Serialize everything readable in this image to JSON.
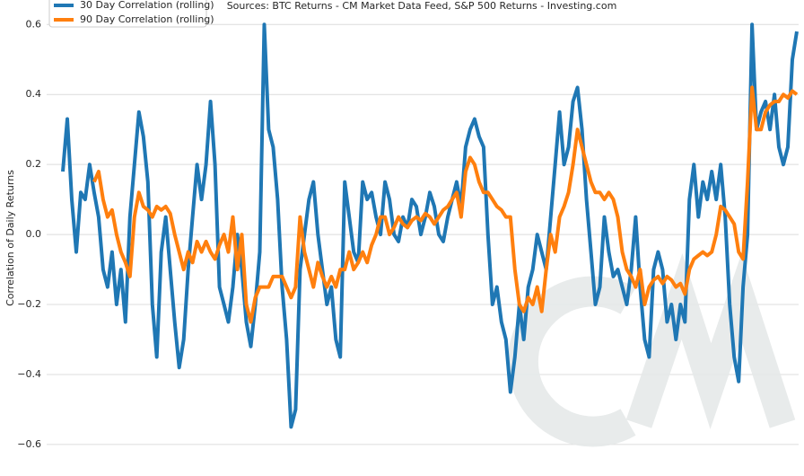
{
  "chart_data": {
    "type": "line",
    "subtitle": "Sources: BTC Returns - CM Market Data Feed,  S&P 500 Returns - Investing.com",
    "y_label": "Correlation of Daily Returns",
    "ylim": [
      -0.69,
      0.67
    ],
    "yticks": [
      {
        "value": 0.6,
        "label": "0.6"
      },
      {
        "value": 0.4,
        "label": "0.4"
      },
      {
        "value": 0.2,
        "label": "0.2"
      },
      {
        "value": 0,
        "label": "0.0"
      },
      {
        "value": -0.2,
        "label": "−0.2"
      },
      {
        "value": -0.4,
        "label": "−0.4"
      },
      {
        "value": -0.6,
        "label": "−0.6"
      }
    ],
    "grid": true,
    "legend": "upper left",
    "series": [
      {
        "name": "30 Day Correlation (rolling)",
        "color": "#1f77b4",
        "values": [
          0.18,
          0.33,
          0.1,
          -0.05,
          0.12,
          0.1,
          0.2,
          0.12,
          0.05,
          -0.1,
          -0.15,
          -0.05,
          -0.2,
          -0.1,
          -0.25,
          0.05,
          0.2,
          0.35,
          0.28,
          0.15,
          -0.2,
          -0.35,
          -0.05,
          0.05,
          -0.1,
          -0.25,
          -0.38,
          -0.3,
          -0.1,
          0.05,
          0.2,
          0.1,
          0.2,
          0.38,
          0.2,
          -0.15,
          -0.2,
          -0.25,
          -0.15,
          0.0,
          -0.1,
          -0.25,
          -0.32,
          -0.2,
          -0.05,
          0.6,
          0.3,
          0.25,
          0.1,
          -0.15,
          -0.3,
          -0.55,
          -0.5,
          -0.1,
          0.0,
          0.1,
          0.15,
          0.0,
          -0.1,
          -0.2,
          -0.15,
          -0.3,
          -0.35,
          0.15,
          0.05,
          -0.05,
          -0.08,
          0.15,
          0.1,
          0.12,
          0.05,
          0.0,
          0.15,
          0.1,
          0.0,
          -0.02,
          0.05,
          0.02,
          0.1,
          0.08,
          0.0,
          0.05,
          0.12,
          0.08,
          0.0,
          -0.02,
          0.05,
          0.1,
          0.15,
          0.08,
          0.25,
          0.3,
          0.33,
          0.28,
          0.25,
          0.0,
          -0.2,
          -0.15,
          -0.25,
          -0.3,
          -0.45,
          -0.35,
          -0.2,
          -0.3,
          -0.15,
          -0.1,
          0.0,
          -0.05,
          -0.1,
          0.05,
          0.2,
          0.35,
          0.2,
          0.25,
          0.38,
          0.42,
          0.3,
          0.1,
          -0.05,
          -0.2,
          -0.15,
          0.05,
          -0.05,
          -0.12,
          -0.1,
          -0.15,
          -0.2,
          -0.1,
          0.05,
          -0.15,
          -0.3,
          -0.35,
          -0.1,
          -0.05,
          -0.1,
          -0.25,
          -0.2,
          -0.3,
          -0.2,
          -0.25,
          0.1,
          0.2,
          0.05,
          0.15,
          0.1,
          0.18,
          0.1,
          0.2,
          0.05,
          -0.2,
          -0.35,
          -0.42,
          -0.15,
          0.0,
          0.6,
          0.3,
          0.35,
          0.38,
          0.3,
          0.4,
          0.25,
          0.2,
          0.25,
          0.5,
          0.58
        ]
      },
      {
        "name": "90 Day Correlation (rolling)",
        "color": "#ff7f0e",
        "values": [
          null,
          null,
          null,
          null,
          null,
          null,
          null,
          0.15,
          0.18,
          0.1,
          0.05,
          0.07,
          0.0,
          -0.05,
          -0.08,
          -0.12,
          0.05,
          0.12,
          0.08,
          0.07,
          0.05,
          0.08,
          0.07,
          0.08,
          0.06,
          0.0,
          -0.05,
          -0.1,
          -0.05,
          -0.08,
          -0.02,
          -0.05,
          -0.02,
          -0.05,
          -0.07,
          -0.03,
          0.0,
          -0.05,
          0.05,
          -0.1,
          0.0,
          -0.2,
          -0.25,
          -0.18,
          -0.15,
          -0.15,
          -0.15,
          -0.12,
          -0.12,
          -0.12,
          -0.15,
          -0.18,
          -0.15,
          0.05,
          -0.05,
          -0.1,
          -0.15,
          -0.08,
          -0.12,
          -0.15,
          -0.12,
          -0.15,
          -0.1,
          -0.1,
          -0.05,
          -0.1,
          -0.08,
          -0.05,
          -0.08,
          -0.03,
          0.0,
          0.05,
          0.05,
          0.0,
          0.02,
          0.05,
          0.03,
          0.02,
          0.04,
          0.05,
          0.04,
          0.06,
          0.05,
          0.03,
          0.05,
          0.07,
          0.08,
          0.1,
          0.12,
          0.05,
          0.18,
          0.22,
          0.2,
          0.15,
          0.12,
          0.12,
          0.1,
          0.08,
          0.07,
          0.05,
          0.05,
          -0.1,
          -0.2,
          -0.22,
          -0.18,
          -0.2,
          -0.15,
          -0.22,
          -0.1,
          0.0,
          -0.05,
          0.05,
          0.08,
          0.12,
          0.2,
          0.3,
          0.25,
          0.2,
          0.15,
          0.12,
          0.12,
          0.1,
          0.12,
          0.1,
          0.05,
          -0.05,
          -0.1,
          -0.12,
          -0.15,
          -0.1,
          -0.2,
          -0.15,
          -0.13,
          -0.12,
          -0.14,
          -0.12,
          -0.13,
          -0.15,
          -0.14,
          -0.17,
          -0.1,
          -0.07,
          -0.06,
          -0.05,
          -0.06,
          -0.05,
          0.0,
          0.08,
          0.07,
          0.05,
          0.03,
          -0.05,
          -0.07,
          0.15,
          0.42,
          0.3,
          0.3,
          0.35,
          0.37,
          0.38,
          0.38,
          0.4,
          0.39,
          0.41,
          0.4
        ]
      }
    ]
  }
}
